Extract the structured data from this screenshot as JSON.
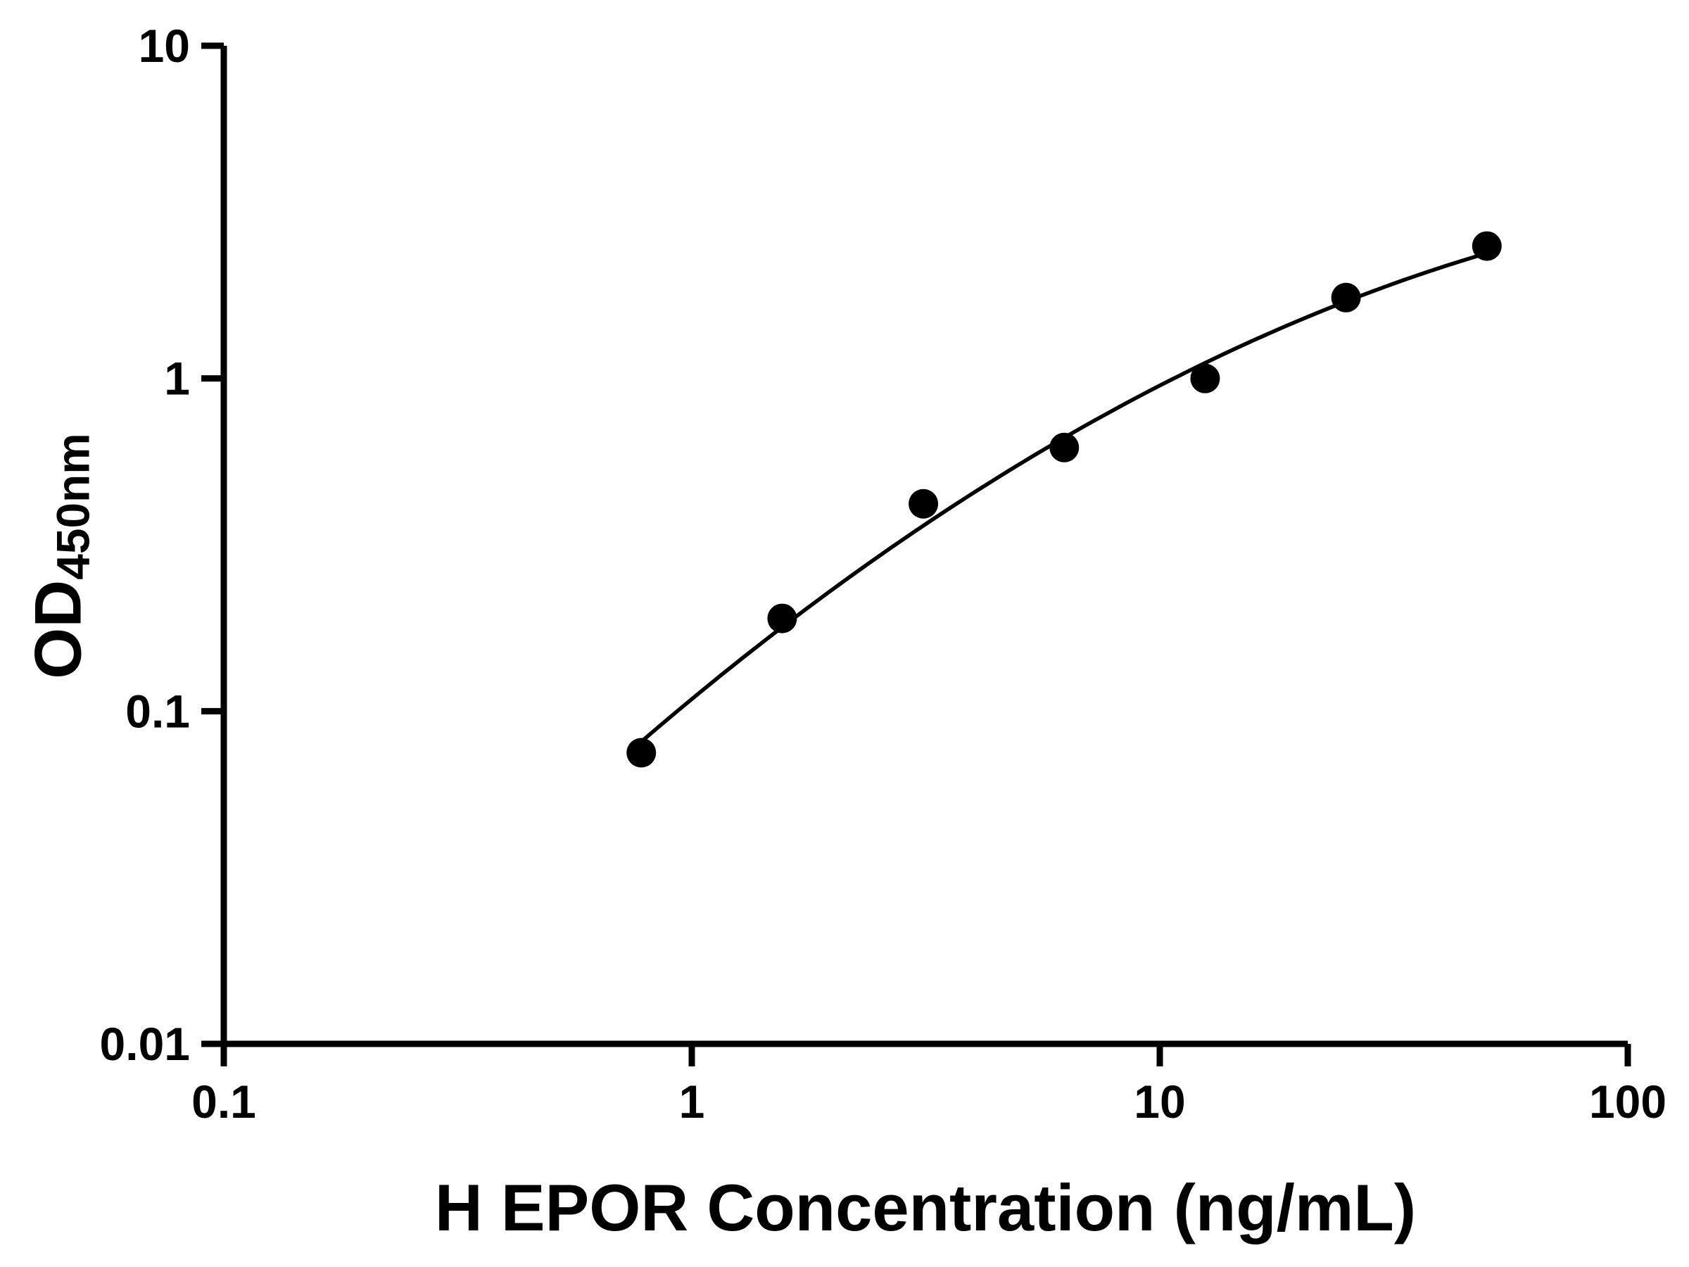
{
  "chart_data": {
    "type": "scatter",
    "title": "",
    "xlabel": "H EPOR Concentration (ng/mL)",
    "ylabel_main": "OD",
    "ylabel_sub": "450nm",
    "x_scale": "log",
    "y_scale": "log",
    "xlim": [
      0.1,
      100
    ],
    "ylim": [
      0.01,
      10
    ],
    "x_ticks": [
      0.1,
      1,
      10,
      100
    ],
    "y_ticks": [
      0.01,
      0.1,
      1,
      10
    ],
    "grid": false,
    "legend": false,
    "x": [
      0.78,
      1.56,
      3.125,
      6.25,
      12.5,
      25,
      50
    ],
    "y": [
      0.075,
      0.19,
      0.42,
      0.62,
      1.0,
      1.75,
      2.5
    ],
    "fit": {
      "type": "quadratic_loglog",
      "coeffs": [
        -0.9637,
        1.1621,
        -0.2197
      ],
      "x_range": [
        0.76,
        50.5
      ]
    },
    "marker_color": "#000000",
    "line_color": "#000000",
    "axis_color": "#000000",
    "background": "#ffffff"
  }
}
